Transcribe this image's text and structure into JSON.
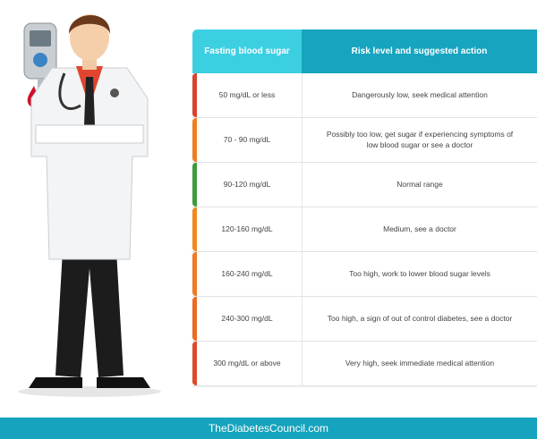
{
  "table": {
    "header": [
      "Fasting blood sugar",
      "Risk level and suggested action"
    ],
    "rows": [
      [
        "50 mg/dL or less",
        "Dangerously low, seek medical attention"
      ],
      [
        "70 - 90 mg/dL",
        "Possibly too low, get sugar if experiencing symptoms of low blood sugar or see a doctor"
      ],
      [
        "90-120 mg/dL",
        "Normal range"
      ],
      [
        "120-160 mg/dL",
        "Medium, see a doctor"
      ],
      [
        "160-240 mg/dL",
        "Too high, work to lower blood sugar levels"
      ],
      [
        "240-300 mg/dL",
        "Too high, a sign of out of control diabetes, see a doctor"
      ],
      [
        "300 mg/dL or above",
        "Very high, seek immediate medical attention"
      ]
    ]
  },
  "footer": {
    "text": "TheDiabetesCouncil.com"
  }
}
